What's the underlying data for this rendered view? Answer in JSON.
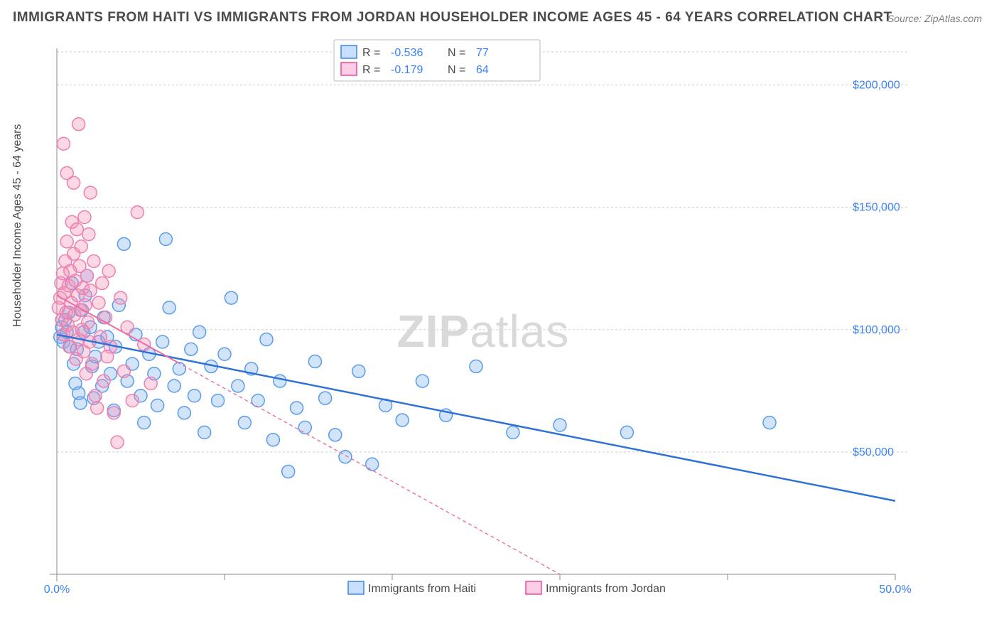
{
  "title": "IMMIGRANTS FROM HAITI VS IMMIGRANTS FROM JORDAN HOUSEHOLDER INCOME AGES 45 - 64 YEARS CORRELATION CHART",
  "source": "Source: ZipAtlas.com",
  "ylabel": "Householder Income Ages 45 - 64 years",
  "watermark_a": "ZIP",
  "watermark_b": "atlas",
  "chart": {
    "type": "scatter",
    "xlim": [
      0,
      50
    ],
    "ylim": [
      0,
      215000
    ],
    "xticks": [
      0,
      10,
      20,
      30,
      40,
      50
    ],
    "xtick_labels_shown": {
      "0": "0.0%",
      "50": "50.0%"
    },
    "yticks": [
      50000,
      100000,
      150000,
      200000
    ],
    "ytick_labels": [
      "$50,000",
      "$100,000",
      "$150,000",
      "$200,000"
    ],
    "grid_color": "#cccccc",
    "background_color": "#ffffff",
    "marker_radius": 9,
    "series": [
      {
        "name": "Immigrants from Haiti",
        "label": "Immigrants from Haiti",
        "color_fill": "rgba(125,177,240,0.35)",
        "color_stroke": "#5a9bea",
        "R": "-0.536",
        "N": "77",
        "regression": {
          "x1": 0,
          "y1": 98000,
          "x2": 50,
          "y2": 30000,
          "solid_end_x": 50,
          "color": "#2f72d4",
          "width": 2.5
        },
        "points": [
          [
            0.2,
            97000
          ],
          [
            0.3,
            101000
          ],
          [
            0.4,
            95000
          ],
          [
            0.5,
            104000
          ],
          [
            0.6,
            99000
          ],
          [
            0.7,
            107000
          ],
          [
            0.8,
            93000
          ],
          [
            0.9,
            119000
          ],
          [
            1.0,
            86000
          ],
          [
            1.1,
            78000
          ],
          [
            1.2,
            92000
          ],
          [
            1.3,
            74000
          ],
          [
            1.4,
            70000
          ],
          [
            1.5,
            108000
          ],
          [
            1.6,
            99000
          ],
          [
            1.7,
            114000
          ],
          [
            1.8,
            122000
          ],
          [
            2.0,
            101000
          ],
          [
            2.1,
            85000
          ],
          [
            2.2,
            72000
          ],
          [
            2.3,
            89000
          ],
          [
            2.5,
            95000
          ],
          [
            2.7,
            77000
          ],
          [
            2.8,
            105000
          ],
          [
            3.0,
            97000
          ],
          [
            3.2,
            82000
          ],
          [
            3.4,
            67000
          ],
          [
            3.5,
            93000
          ],
          [
            3.7,
            110000
          ],
          [
            4.0,
            135000
          ],
          [
            4.2,
            79000
          ],
          [
            4.5,
            86000
          ],
          [
            4.7,
            98000
          ],
          [
            5.0,
            73000
          ],
          [
            5.2,
            62000
          ],
          [
            5.5,
            90000
          ],
          [
            5.8,
            82000
          ],
          [
            6.0,
            69000
          ],
          [
            6.3,
            95000
          ],
          [
            6.5,
            137000
          ],
          [
            6.7,
            109000
          ],
          [
            7.0,
            77000
          ],
          [
            7.3,
            84000
          ],
          [
            7.6,
            66000
          ],
          [
            8.0,
            92000
          ],
          [
            8.2,
            73000
          ],
          [
            8.5,
            99000
          ],
          [
            8.8,
            58000
          ],
          [
            9.2,
            85000
          ],
          [
            9.6,
            71000
          ],
          [
            10.0,
            90000
          ],
          [
            10.4,
            113000
          ],
          [
            10.8,
            77000
          ],
          [
            11.2,
            62000
          ],
          [
            11.6,
            84000
          ],
          [
            12.0,
            71000
          ],
          [
            12.5,
            96000
          ],
          [
            12.9,
            55000
          ],
          [
            13.3,
            79000
          ],
          [
            13.8,
            42000
          ],
          [
            14.3,
            68000
          ],
          [
            14.8,
            60000
          ],
          [
            15.4,
            87000
          ],
          [
            16.0,
            72000
          ],
          [
            16.6,
            57000
          ],
          [
            17.2,
            48000
          ],
          [
            18.0,
            83000
          ],
          [
            18.8,
            45000
          ],
          [
            19.6,
            69000
          ],
          [
            20.6,
            63000
          ],
          [
            21.8,
            79000
          ],
          [
            23.2,
            65000
          ],
          [
            25.0,
            85000
          ],
          [
            27.2,
            58000
          ],
          [
            30.0,
            61000
          ],
          [
            34.0,
            58000
          ],
          [
            42.5,
            62000
          ]
        ]
      },
      {
        "name": "Immigrants from Jordan",
        "label": "Immigrants from Jordan",
        "color_fill": "rgba(244,143,177,0.35)",
        "color_stroke": "#ef7fb0",
        "R": "-0.179",
        "N": "64",
        "regression": {
          "x1": 0,
          "y1": 114000,
          "x2": 30,
          "y2": 0,
          "solid_end_x": 7.2,
          "color": "#ec6fa3",
          "width": 2,
          "dash": "5 4"
        },
        "points": [
          [
            0.1,
            109000
          ],
          [
            0.2,
            113000
          ],
          [
            0.25,
            119000
          ],
          [
            0.3,
            104000
          ],
          [
            0.35,
            123000
          ],
          [
            0.4,
            98000
          ],
          [
            0.45,
            115000
          ],
          [
            0.5,
            128000
          ],
          [
            0.55,
            107000
          ],
          [
            0.6,
            136000
          ],
          [
            0.65,
            102000
          ],
          [
            0.7,
            118000
          ],
          [
            0.75,
            93000
          ],
          [
            0.8,
            124000
          ],
          [
            0.85,
            111000
          ],
          [
            0.9,
            144000
          ],
          [
            0.95,
            99000
          ],
          [
            1.0,
            131000
          ],
          [
            1.05,
            106000
          ],
          [
            1.1,
            120000
          ],
          [
            1.15,
            88000
          ],
          [
            1.2,
            141000
          ],
          [
            1.25,
            114000
          ],
          [
            1.3,
            96000
          ],
          [
            1.35,
            126000
          ],
          [
            1.4,
            108000
          ],
          [
            1.45,
            134000
          ],
          [
            1.5,
            100000
          ],
          [
            1.55,
            117000
          ],
          [
            1.6,
            91000
          ],
          [
            1.65,
            146000
          ],
          [
            1.7,
            110000
          ],
          [
            1.75,
            82000
          ],
          [
            1.8,
            122000
          ],
          [
            1.85,
            103000
          ],
          [
            1.9,
            139000
          ],
          [
            1.95,
            95000
          ],
          [
            2.0,
            116000
          ],
          [
            2.1,
            86000
          ],
          [
            2.2,
            128000
          ],
          [
            2.3,
            73000
          ],
          [
            2.4,
            68000
          ],
          [
            2.5,
            111000
          ],
          [
            2.6,
            97000
          ],
          [
            2.7,
            119000
          ],
          [
            2.8,
            79000
          ],
          [
            2.9,
            105000
          ],
          [
            3.0,
            89000
          ],
          [
            3.1,
            124000
          ],
          [
            3.2,
            93000
          ],
          [
            3.4,
            66000
          ],
          [
            3.6,
            54000
          ],
          [
            3.8,
            113000
          ],
          [
            4.0,
            83000
          ],
          [
            4.2,
            101000
          ],
          [
            4.5,
            71000
          ],
          [
            4.8,
            148000
          ],
          [
            5.2,
            94000
          ],
          [
            5.6,
            78000
          ],
          [
            0.4,
            176000
          ],
          [
            0.6,
            164000
          ],
          [
            1.0,
            160000
          ],
          [
            1.3,
            184000
          ],
          [
            2.0,
            156000
          ]
        ]
      }
    ],
    "stats_legend": {
      "R_label": "R =",
      "N_label": "N ="
    },
    "bottom_legend": true
  }
}
